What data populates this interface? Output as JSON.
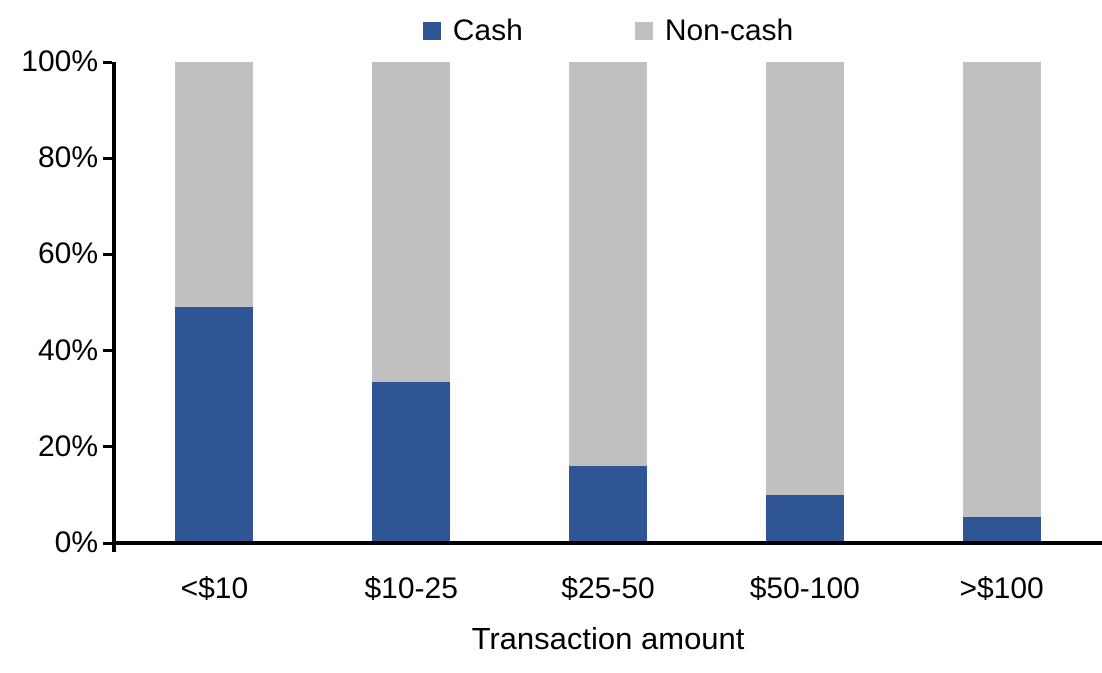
{
  "chart_data": {
    "type": "bar",
    "variant": "stacked-100",
    "title": "",
    "xlabel": "Transaction amount",
    "ylabel": "",
    "categories": [
      "<$10",
      "$10-25",
      "$25-50",
      "$50-100",
      ">$100"
    ],
    "series": [
      {
        "name": "Cash",
        "color": "#2F5594",
        "values": [
          49,
          33.5,
          16,
          10,
          5.5
        ]
      },
      {
        "name": "Non-cash",
        "color": "#C0C0C0",
        "values": [
          51,
          66.5,
          84,
          90,
          94.5
        ]
      }
    ],
    "ylim": [
      0,
      100
    ],
    "ytick_labels": [
      "0%",
      "20%",
      "40%",
      "60%",
      "80%",
      "100%"
    ],
    "ytick_values": [
      0,
      20,
      40,
      60,
      80,
      100
    ],
    "grid": false,
    "legend_position": "top",
    "axis_color": "#000000",
    "text_color": "#000000"
  }
}
